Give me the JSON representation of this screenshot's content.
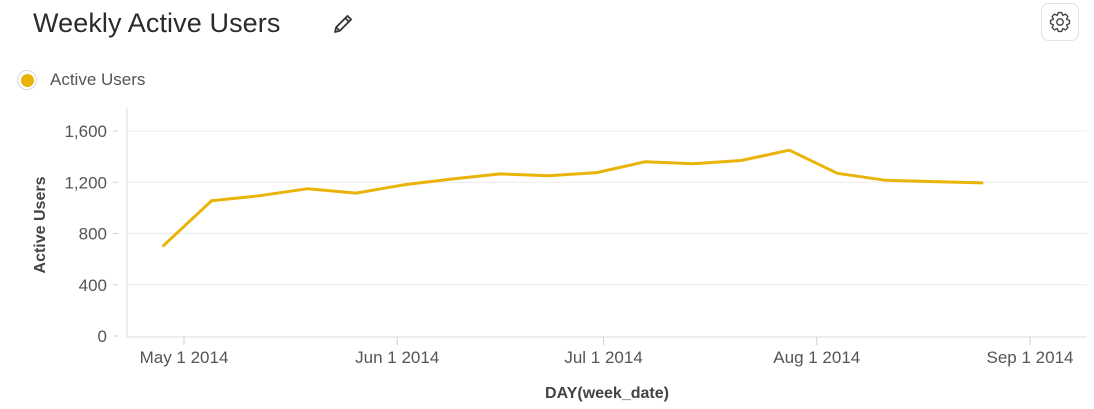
{
  "header": {
    "title": "Weekly Active Users",
    "edit_icon": "pencil-icon",
    "settings_icon": "gear-icon"
  },
  "legend": {
    "items": [
      {
        "label": "Active Users",
        "color": "#EAB308"
      }
    ]
  },
  "chart_data": {
    "type": "line",
    "title": "Weekly Active Users",
    "xlabel": "DAY(week_date)",
    "ylabel": "Active Users",
    "ylim": [
      0,
      1800
    ],
    "yticks": [
      0,
      400,
      800,
      1200,
      1600
    ],
    "ytick_labels": [
      "0",
      "400",
      "800",
      "1,200",
      "1,600"
    ],
    "xticks": [
      "2014-05-01",
      "2014-06-01",
      "2014-07-01",
      "2014-08-01",
      "2014-09-01"
    ],
    "xtick_labels": [
      "May 1 2014",
      "Jun 1 2014",
      "Jul 1 2014",
      "Aug 1 2014",
      "Sep 1 2014"
    ],
    "xlim": [
      "2014-04-25",
      "2014-09-09"
    ],
    "grid": true,
    "legend_position": "top-left",
    "series": [
      {
        "name": "Active Users",
        "color": "#EAB308",
        "x": [
          "2014-04-28",
          "2014-05-05",
          "2014-05-12",
          "2014-05-19",
          "2014-05-26",
          "2014-06-02",
          "2014-06-09",
          "2014-06-16",
          "2014-06-23",
          "2014-06-30",
          "2014-07-07",
          "2014-07-14",
          "2014-07-21",
          "2014-07-28",
          "2014-08-04",
          "2014-08-11",
          "2014-08-18",
          "2014-08-25"
        ],
        "values": [
          705,
          1055,
          1095,
          1150,
          1115,
          1180,
          1225,
          1265,
          1250,
          1275,
          1360,
          1345,
          1370,
          1450,
          1270,
          1215,
          1205,
          1195
        ]
      }
    ]
  }
}
